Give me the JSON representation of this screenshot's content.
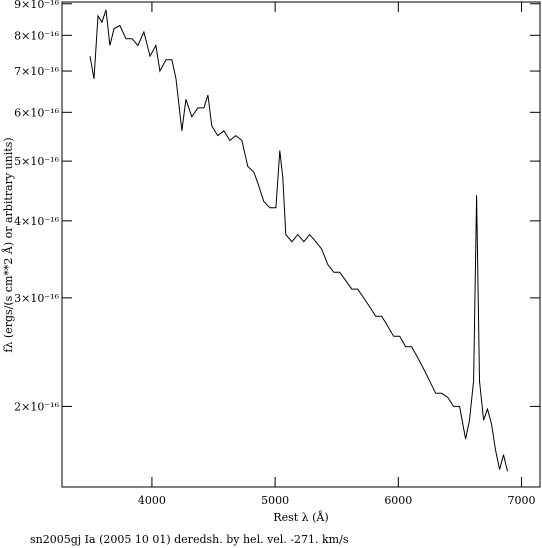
{
  "chart_data": {
    "type": "line",
    "title": "sn2005gj Ia (2005 10 01) deredsh. by hel. vel.  -271. km/s",
    "x_label": "Rest λ (Å)",
    "y_label": "fλ (ergs/(s cm**2 Å) or arbitrary units)",
    "color": "#000000",
    "log_y": true,
    "x": [
      3497,
      3530,
      3562,
      3595,
      3627,
      3659,
      3692,
      3740,
      3789,
      3838,
      3886,
      3935,
      3984,
      4032,
      4065,
      4114,
      4162,
      4195,
      4243,
      4276,
      4324,
      4373,
      4422,
      4454,
      4486,
      4535,
      4584,
      4632,
      4681,
      4730,
      4778,
      4827,
      4860,
      4908,
      4957,
      5006,
      5038,
      5062,
      5087,
      5135,
      5184,
      5233,
      5281,
      5330,
      5378,
      5427,
      5476,
      5524,
      5573,
      5622,
      5670,
      5719,
      5768,
      5816,
      5865,
      5914,
      5962,
      6011,
      6060,
      6108,
      6157,
      6206,
      6254,
      6303,
      6351,
      6400,
      6449,
      6497,
      6546,
      6578,
      6611,
      6635,
      6659,
      6692,
      6724,
      6757,
      6789,
      6822,
      6854,
      6886
    ],
    "values": [
      7.4e-16,
      6.8e-16,
      8.6e-16,
      8.4e-16,
      8.8e-16,
      7.7e-16,
      8.2e-16,
      8.3e-16,
      7.9e-16,
      7.9e-16,
      7.7e-16,
      8.1e-16,
      7.4e-16,
      7.7e-16,
      7e-16,
      7.3e-16,
      7.3e-16,
      6.8e-16,
      5.6e-16,
      6.3e-16,
      5.9e-16,
      6.1e-16,
      6.1e-16,
      6.4e-16,
      5.7e-16,
      5.5e-16,
      5.6e-16,
      5.4e-16,
      5.5e-16,
      5.4e-16,
      4.9e-16,
      4.8e-16,
      4.6e-16,
      4.3e-16,
      4.2e-16,
      4.2e-16,
      5.2e-16,
      4.7e-16,
      3.8e-16,
      3.7e-16,
      3.8e-16,
      3.7e-16,
      3.8e-16,
      3.7e-16,
      3.6e-16,
      3.4e-16,
      3.3e-16,
      3.3e-16,
      3.2e-16,
      3.1e-16,
      3.1e-16,
      3e-16,
      2.9e-16,
      2.8e-16,
      2.8e-16,
      2.7e-16,
      2.6e-16,
      2.6e-16,
      2.5e-16,
      2.5e-16,
      2.4e-16,
      2.3e-16,
      2.2e-16,
      2.1e-16,
      2.1e-16,
      2.07e-16,
      2e-16,
      2e-16,
      1.77e-16,
      1.9e-16,
      2.2e-16,
      4.4e-16,
      2.2e-16,
      1.9e-16,
      1.98e-16,
      1.87e-16,
      1.7e-16,
      1.58e-16,
      1.67e-16,
      1.57e-16
    ],
    "xlim": [
      3270,
      7150
    ],
    "xticks": [
      4000,
      5000,
      6000,
      7000
    ],
    "ylim": [
      1.48e-16,
      9.06e-16
    ],
    "yticks": [
      {
        "value": 2e-16,
        "label": "2×10⁻¹⁶"
      },
      {
        "value": 3e-16,
        "label": "3×10⁻¹⁶"
      },
      {
        "value": 4e-16,
        "label": "4×10⁻¹⁶"
      },
      {
        "value": 5e-16,
        "label": "5×10⁻¹⁶"
      },
      {
        "value": 6e-16,
        "label": "6×10⁻¹⁶"
      },
      {
        "value": 7e-16,
        "label": "7×10⁻¹⁶"
      },
      {
        "value": 8e-16,
        "label": "8×10⁻¹⁶"
      },
      {
        "value": 9e-16,
        "label": "9×10⁻¹⁶"
      }
    ]
  }
}
